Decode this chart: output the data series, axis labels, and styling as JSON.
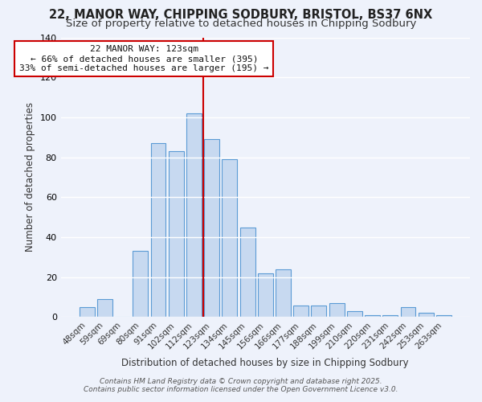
{
  "title1": "22, MANOR WAY, CHIPPING SODBURY, BRISTOL, BS37 6NX",
  "title2": "Size of property relative to detached houses in Chipping Sodbury",
  "xlabel": "Distribution of detached houses by size in Chipping Sodbury",
  "ylabel": "Number of detached properties",
  "bar_labels": [
    "48sqm",
    "59sqm",
    "69sqm",
    "80sqm",
    "91sqm",
    "102sqm",
    "112sqm",
    "123sqm",
    "134sqm",
    "145sqm",
    "156sqm",
    "166sqm",
    "177sqm",
    "188sqm",
    "199sqm",
    "210sqm",
    "220sqm",
    "231sqm",
    "242sqm",
    "253sqm",
    "263sqm"
  ],
  "bar_heights": [
    5,
    9,
    0,
    33,
    87,
    83,
    102,
    89,
    79,
    45,
    22,
    24,
    6,
    6,
    7,
    3,
    1,
    1,
    5,
    2,
    1
  ],
  "bar_color": "#c7d9f0",
  "bar_edge_color": "#5b9bd5",
  "background_color": "#eef2fb",
  "grid_color": "#ffffff",
  "vline_x": 6.5,
  "vline_color": "#cc0000",
  "annotation_title": "22 MANOR WAY: 123sqm",
  "annotation_line1": "← 66% of detached houses are smaller (395)",
  "annotation_line2": "33% of semi-detached houses are larger (195) →",
  "annotation_box_color": "#ffffff",
  "annotation_box_edge": "#cc0000",
  "ylim": [
    0,
    140
  ],
  "yticks": [
    0,
    20,
    40,
    60,
    80,
    100,
    120,
    140
  ],
  "footnote1": "Contains HM Land Registry data © Crown copyright and database right 2025.",
  "footnote2": "Contains public sector information licensed under the Open Government Licence v3.0.",
  "title_fontsize": 10.5,
  "subtitle_fontsize": 9.5,
  "axis_label_fontsize": 8.5,
  "tick_fontsize": 7.5,
  "annotation_fontsize": 8.0,
  "footnote_fontsize": 6.5
}
